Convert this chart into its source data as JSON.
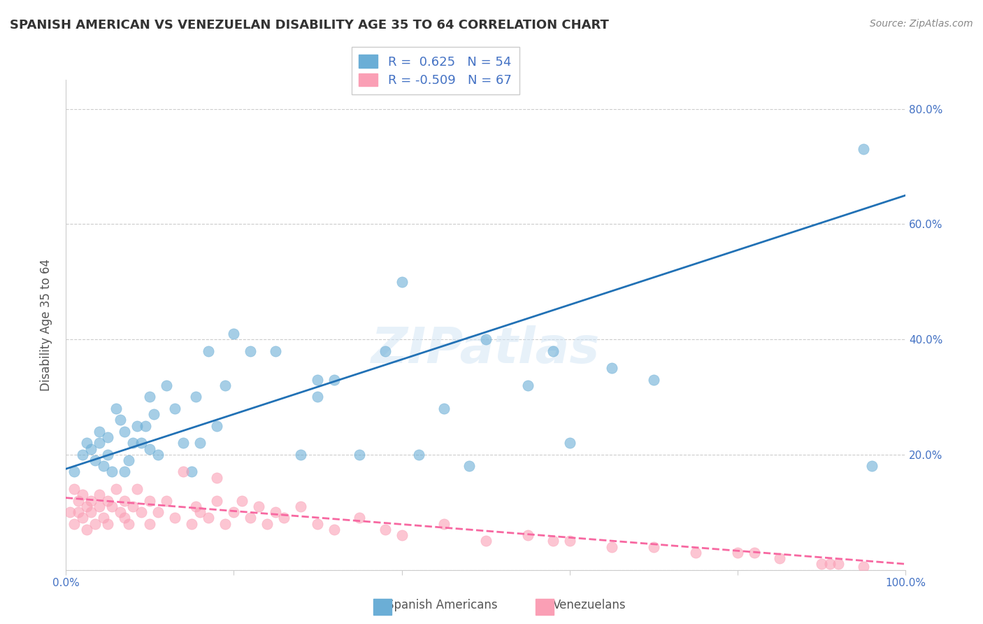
{
  "title": "SPANISH AMERICAN VS VENEZUELAN DISABILITY AGE 35 TO 64 CORRELATION CHART",
  "source": "Source: ZipAtlas.com",
  "xlabel": "",
  "ylabel": "Disability Age 35 to 64",
  "xlim": [
    0,
    1.0
  ],
  "ylim": [
    0,
    0.85
  ],
  "x_ticks": [
    0.0,
    0.2,
    0.4,
    0.6,
    0.8,
    1.0
  ],
  "x_tick_labels": [
    "0.0%",
    "",
    "",
    "",
    "",
    "100.0%"
  ],
  "y_ticks": [
    0.0,
    0.2,
    0.4,
    0.6,
    0.8
  ],
  "y_tick_labels": [
    "",
    "20.0%",
    "40.0%",
    "60.0%",
    "80.0%"
  ],
  "blue_R": 0.625,
  "blue_N": 54,
  "pink_R": -0.509,
  "pink_N": 67,
  "blue_color": "#6baed6",
  "pink_color": "#fa9fb5",
  "blue_line_color": "#2171b5",
  "pink_line_color": "#f768a1",
  "legend_text_color": "#4472c4",
  "watermark": "ZIPatlas",
  "blue_scatter_x": [
    0.01,
    0.02,
    0.025,
    0.03,
    0.035,
    0.04,
    0.04,
    0.045,
    0.05,
    0.05,
    0.055,
    0.06,
    0.065,
    0.07,
    0.07,
    0.075,
    0.08,
    0.085,
    0.09,
    0.095,
    0.1,
    0.1,
    0.105,
    0.11,
    0.12,
    0.13,
    0.14,
    0.15,
    0.155,
    0.16,
    0.17,
    0.18,
    0.19,
    0.2,
    0.22,
    0.25,
    0.28,
    0.3,
    0.3,
    0.32,
    0.35,
    0.38,
    0.4,
    0.42,
    0.45,
    0.48,
    0.5,
    0.55,
    0.58,
    0.6,
    0.65,
    0.7,
    0.95,
    0.96
  ],
  "blue_scatter_y": [
    0.17,
    0.2,
    0.22,
    0.21,
    0.19,
    0.22,
    0.24,
    0.18,
    0.2,
    0.23,
    0.17,
    0.28,
    0.26,
    0.24,
    0.17,
    0.19,
    0.22,
    0.25,
    0.22,
    0.25,
    0.21,
    0.3,
    0.27,
    0.2,
    0.32,
    0.28,
    0.22,
    0.17,
    0.3,
    0.22,
    0.38,
    0.25,
    0.32,
    0.41,
    0.38,
    0.38,
    0.2,
    0.3,
    0.33,
    0.33,
    0.2,
    0.38,
    0.5,
    0.2,
    0.28,
    0.18,
    0.4,
    0.32,
    0.38,
    0.22,
    0.35,
    0.33,
    0.73,
    0.18
  ],
  "pink_scatter_x": [
    0.005,
    0.01,
    0.01,
    0.015,
    0.015,
    0.02,
    0.02,
    0.025,
    0.025,
    0.03,
    0.03,
    0.035,
    0.04,
    0.04,
    0.045,
    0.05,
    0.05,
    0.055,
    0.06,
    0.065,
    0.07,
    0.07,
    0.075,
    0.08,
    0.085,
    0.09,
    0.1,
    0.1,
    0.11,
    0.12,
    0.13,
    0.14,
    0.15,
    0.155,
    0.16,
    0.17,
    0.18,
    0.18,
    0.19,
    0.2,
    0.21,
    0.22,
    0.23,
    0.24,
    0.25,
    0.26,
    0.28,
    0.3,
    0.32,
    0.35,
    0.38,
    0.4,
    0.45,
    0.5,
    0.55,
    0.58,
    0.6,
    0.65,
    0.7,
    0.75,
    0.8,
    0.82,
    0.85,
    0.9,
    0.91,
    0.92,
    0.95
  ],
  "pink_scatter_y": [
    0.1,
    0.14,
    0.08,
    0.12,
    0.1,
    0.13,
    0.09,
    0.11,
    0.07,
    0.12,
    0.1,
    0.08,
    0.13,
    0.11,
    0.09,
    0.12,
    0.08,
    0.11,
    0.14,
    0.1,
    0.12,
    0.09,
    0.08,
    0.11,
    0.14,
    0.1,
    0.12,
    0.08,
    0.1,
    0.12,
    0.09,
    0.17,
    0.08,
    0.11,
    0.1,
    0.09,
    0.12,
    0.16,
    0.08,
    0.1,
    0.12,
    0.09,
    0.11,
    0.08,
    0.1,
    0.09,
    0.11,
    0.08,
    0.07,
    0.09,
    0.07,
    0.06,
    0.08,
    0.05,
    0.06,
    0.05,
    0.05,
    0.04,
    0.04,
    0.03,
    0.03,
    0.03,
    0.02,
    0.01,
    0.01,
    0.01,
    0.005
  ],
  "blue_trend_x": [
    0.0,
    1.0
  ],
  "blue_trend_y": [
    0.175,
    0.65
  ],
  "pink_trend_x": [
    0.0,
    1.0
  ],
  "pink_trend_y": [
    0.125,
    0.01
  ],
  "grid_color": "#cccccc",
  "figsize": [
    14.06,
    8.92
  ],
  "dpi": 100
}
